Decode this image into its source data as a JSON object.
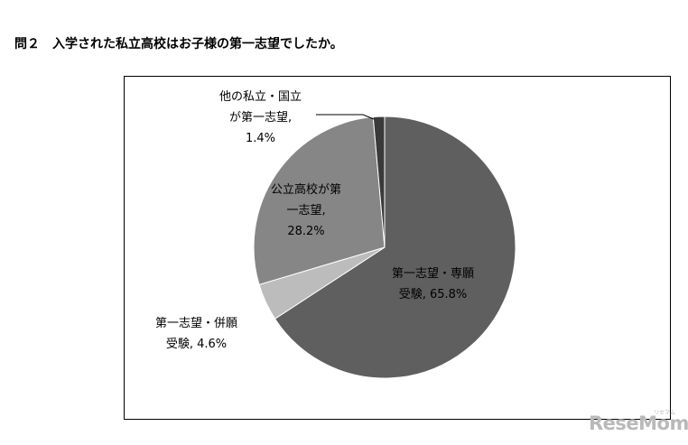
{
  "title": "問２　入学された私立高校はお子様の第一志望でしたか。",
  "chart_data": {
    "type": "pie",
    "start": "12 o'clock",
    "direction": "clockwise",
    "slices": [
      {
        "label_lines": [
          "第一志望・専願",
          "受験, 65.8%"
        ],
        "value": 65.8,
        "color": "#5f5f5f"
      },
      {
        "label_lines": [
          "第一志望・併願",
          "受験, 4.6%"
        ],
        "value": 4.6,
        "color": "#bcbcbc"
      },
      {
        "label_lines": [
          "公立高校が第",
          "一志望,",
          "28.2%"
        ],
        "value": 28.2,
        "color": "#868686"
      },
      {
        "label_lines": [
          "他の私立・国立",
          "が第一志望,",
          "1.4%"
        ],
        "value": 1.4,
        "color": "#3a3a3a"
      }
    ],
    "edge_color": "#ffffff"
  },
  "watermark": {
    "text": "ReseMom",
    "subtext": "リセマム"
  }
}
